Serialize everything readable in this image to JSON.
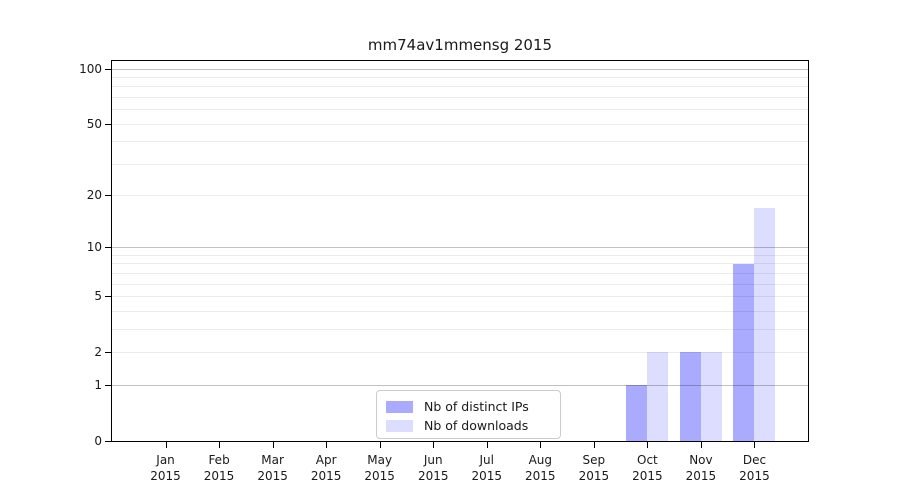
{
  "chart_data": {
    "type": "bar",
    "title": "mm74av1mmensg 2015",
    "categories": [
      "Jan",
      "Feb",
      "Mar",
      "Apr",
      "May",
      "Jun",
      "Jul",
      "Aug",
      "Sep",
      "Oct",
      "Nov",
      "Dec"
    ],
    "xtick_year": "2015",
    "series": [
      {
        "name": "Nb of distinct IPs",
        "color": "#aaaaff",
        "values": [
          0,
          0,
          0,
          0,
          0,
          0,
          0,
          0,
          0,
          1,
          2,
          8
        ]
      },
      {
        "name": "Nb of downloads",
        "color": "#ddddff",
        "values": [
          0,
          0,
          0,
          0,
          0,
          0,
          0,
          0,
          0,
          2,
          2,
          17
        ]
      }
    ],
    "yscale": "log1p",
    "ylim": [
      0,
      110
    ],
    "yticks": [
      0,
      1,
      2,
      5,
      10,
      20,
      50,
      100
    ],
    "major_gridlines": [
      1,
      10,
      100
    ],
    "minor_gridlines": [
      2,
      3,
      4,
      5,
      6,
      7,
      8,
      9,
      20,
      30,
      40,
      50,
      60,
      70,
      80,
      90
    ],
    "grid": true,
    "legend_position": "lower center"
  },
  "colors": {
    "bar_distinct_ips": "#aaaaff",
    "bar_downloads": "#ddddff",
    "axis": "#000000",
    "legend_border": "#cccccc",
    "text": "#1a1a1a",
    "background": "#ffffff"
  }
}
